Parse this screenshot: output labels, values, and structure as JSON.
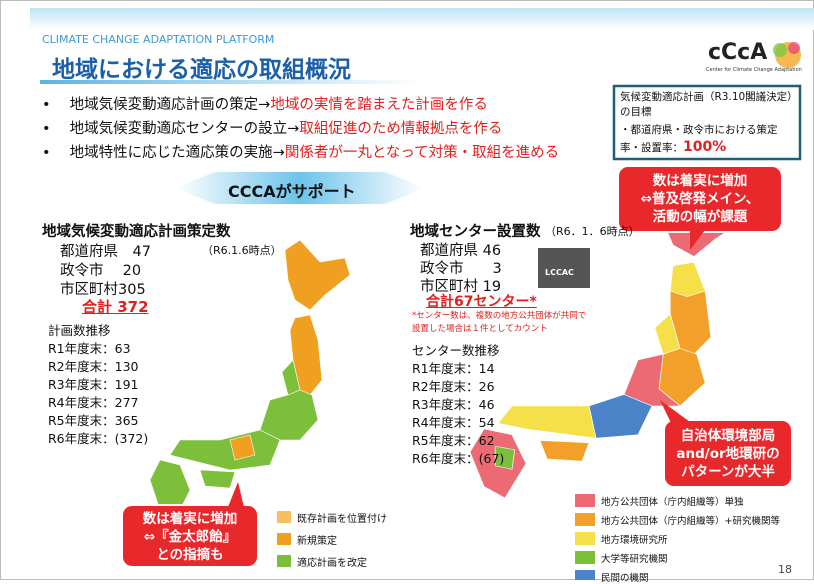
{
  "header": {
    "kicker": "CLIMATE CHANGE ADAPTATION PLATFORM",
    "title": "地域における適応の取組概況",
    "logo": "cCcA",
    "logo_sub": "Center for Climate Change Adaptation"
  },
  "bullets": [
    {
      "lead": "地域気候変動適応計画の策定→",
      "emphasis": "地域の実情を踏まえた計画を作る"
    },
    {
      "lead": "地域気候変動適応センターの設立→",
      "emphasis": "取組促進のため情報拠点を作る"
    },
    {
      "lead": "地域特性に応じた適応策の実施→",
      "emphasis": "関係者が一丸となって対策・取組を進める"
    }
  ],
  "target": {
    "title": "気候変動適応計画（R3.10閣議決定）の目標",
    "text": "・都道府県・政令市における策定率・設置率：",
    "value": "100%"
  },
  "banner": "CCCAがサポート",
  "plans": {
    "title": "地域気候変動適応計画策定数",
    "date": "（R6.1.6時点）",
    "rows": [
      "都道府県　47",
      "政令市　 20",
      "市区町村305"
    ],
    "total": "合計 372",
    "trend_title": "計画数推移",
    "trend": [
      "R1年度末：63",
      "R2年度末：130",
      "R3年度末：191",
      "R4年度末：277",
      "R5年度末：365",
      "R6年度末：(372)"
    ],
    "callout": [
      "数は着実に増加",
      "⇔『金太郎飴』",
      "との指摘も"
    ],
    "legend": [
      "既存計画を位置付け",
      "新規策定",
      "適応計画を改定"
    ]
  },
  "centers": {
    "title": "地域センター設置数",
    "date": "（R6．1．6時点）",
    "rows": [
      "都道府県 46",
      "政令市　　3",
      "市区町村 19"
    ],
    "photo_label": "LCCAC",
    "total": "合計67センター*",
    "note": [
      "*センター数は、複数の地方公共団体が共同で",
      "設置した場合は１件としてカウント"
    ],
    "trend_title": "センター数推移",
    "trend": [
      "R1年度末：14",
      "R2年度末：26",
      "R3年度末：46",
      "R4年度末：54",
      "R5年度末：62",
      "R6年度末：(67)"
    ],
    "callout_top": [
      "数は着実に増加",
      "⇔普及啓発メイン、",
      "活動の幅が課題"
    ],
    "callout_bottom": [
      "自治体環境部局",
      "and/or地環研の",
      "パターンが大半"
    ],
    "legend": [
      "地方公共団体（庁内組織等）単独",
      "地方公共団体（庁内組織等）+研究機関等",
      "地方環境研究所",
      "大学等研究機関",
      "民間の機関"
    ]
  },
  "page_number": "18"
}
